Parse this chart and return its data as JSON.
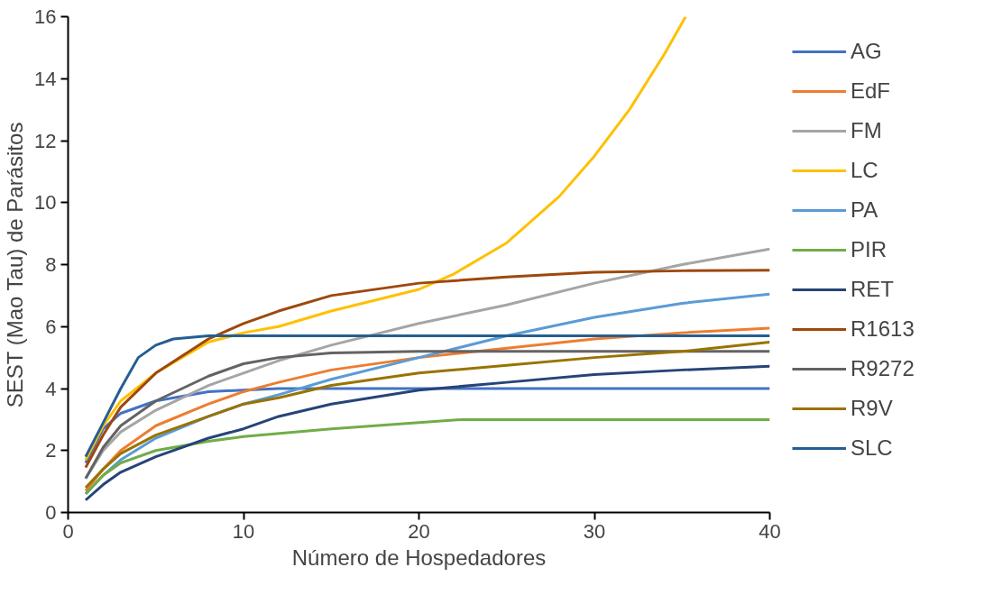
{
  "chart_data": {
    "type": "line",
    "xlabel": "Número de Hospedadores",
    "ylabel": "SEST (Mao Tau) de Parásitos",
    "xlim": [
      0,
      40
    ],
    "ylim": [
      0,
      16
    ],
    "xticks": [
      0,
      10,
      20,
      30,
      40
    ],
    "yticks": [
      0,
      2,
      4,
      6,
      8,
      10,
      12,
      14,
      16
    ],
    "grid": false,
    "legend": "right",
    "marker": "none",
    "line_style": "solid",
    "x": [
      1,
      2,
      3,
      5,
      8,
      10,
      12,
      15,
      20,
      25,
      30,
      35,
      40
    ],
    "series": [
      {
        "name": "AG",
        "color": "#4472c4",
        "values": [
          1.6,
          2.7,
          3.2,
          3.6,
          3.9,
          3.95,
          4.0,
          4.0,
          4.0,
          4.0,
          4.0,
          4.0,
          4.0
        ]
      },
      {
        "name": "EdF",
        "color": "#ed7d31",
        "values": [
          0.7,
          1.4,
          2.0,
          2.8,
          3.5,
          3.9,
          4.2,
          4.6,
          5.0,
          5.3,
          5.6,
          5.8,
          5.95
        ]
      },
      {
        "name": "FM",
        "color": "#a5a5a5",
        "values": [
          1.1,
          2.0,
          2.6,
          3.3,
          4.1,
          4.5,
          4.9,
          5.4,
          6.1,
          6.7,
          7.4,
          8.0,
          8.5
        ]
      },
      {
        "name": "LC",
        "color": "#ffc000",
        "x": [
          1,
          2,
          3,
          5,
          8,
          10,
          12,
          15,
          20,
          22,
          25,
          28,
          30,
          32,
          34,
          35.2
        ],
        "values": [
          1.7,
          2.8,
          3.6,
          4.5,
          5.5,
          5.8,
          6.0,
          6.5,
          7.2,
          7.7,
          8.7,
          10.2,
          11.5,
          13.0,
          14.8,
          16.0
        ]
      },
      {
        "name": "PA",
        "color": "#5b9bd5",
        "values": [
          0.6,
          1.2,
          1.7,
          2.4,
          3.1,
          3.5,
          3.8,
          4.3,
          5.0,
          5.7,
          6.3,
          6.75,
          7.05
        ]
      },
      {
        "name": "PIR",
        "color": "#70ad47",
        "x": [
          1,
          2,
          3,
          5,
          8,
          10,
          15,
          20,
          22.5,
          40
        ],
        "values": [
          0.6,
          1.2,
          1.6,
          2.0,
          2.3,
          2.45,
          2.7,
          2.9,
          3.0,
          3.0
        ]
      },
      {
        "name": "RET",
        "color": "#264478",
        "values": [
          0.4,
          0.9,
          1.3,
          1.8,
          2.4,
          2.7,
          3.1,
          3.5,
          3.95,
          4.2,
          4.45,
          4.6,
          4.72
        ]
      },
      {
        "name": "R1613",
        "color": "#9e480e",
        "values": [
          1.45,
          2.5,
          3.4,
          4.5,
          5.6,
          6.1,
          6.5,
          7.0,
          7.4,
          7.6,
          7.75,
          7.8,
          7.82
        ]
      },
      {
        "name": "R9272",
        "color": "#636363",
        "values": [
          1.1,
          2.1,
          2.8,
          3.6,
          4.4,
          4.8,
          5.0,
          5.15,
          5.2,
          5.2,
          5.2,
          5.2,
          5.2
        ]
      },
      {
        "name": "R9V",
        "color": "#997300",
        "values": [
          0.8,
          1.4,
          1.9,
          2.5,
          3.1,
          3.5,
          3.7,
          4.1,
          4.5,
          4.75,
          5.0,
          5.2,
          5.5
        ]
      },
      {
        "name": "SLC",
        "color": "#255e91",
        "x": [
          1,
          2,
          3,
          4,
          5,
          6,
          8,
          40
        ],
        "values": [
          1.8,
          2.9,
          4.0,
          5.0,
          5.4,
          5.6,
          5.7,
          5.7
        ]
      }
    ]
  }
}
